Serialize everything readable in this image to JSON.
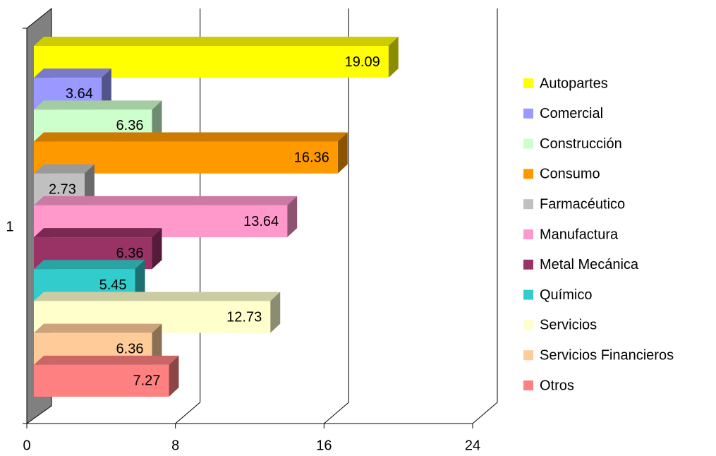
{
  "chart_data": {
    "type": "bar3d",
    "categories": [
      "1"
    ],
    "series": [
      {
        "name": "Autopartes",
        "color": "#ffff00",
        "values": [
          19.09
        ]
      },
      {
        "name": "Comercial",
        "color": "#9999ff",
        "values": [
          3.64
        ]
      },
      {
        "name": "Construcción",
        "color": "#ccffcc",
        "values": [
          6.36
        ]
      },
      {
        "name": "Consumo",
        "color": "#ff9900",
        "values": [
          16.36
        ]
      },
      {
        "name": "Farmacéutico",
        "color": "#c0c0c0",
        "values": [
          2.73
        ]
      },
      {
        "name": "Manufactura",
        "color": "#ff99cc",
        "values": [
          13.64
        ]
      },
      {
        "name": "Metal Mecánica",
        "color": "#993366",
        "values": [
          6.36
        ]
      },
      {
        "name": "Químico",
        "color": "#33cccc",
        "values": [
          5.45
        ]
      },
      {
        "name": "Servicios",
        "color": "#ffffcc",
        "values": [
          12.73
        ]
      },
      {
        "name": "Servicios Financieros",
        "color": "#ffcc99",
        "values": [
          6.36
        ]
      },
      {
        "name": "Otros",
        "color": "#ff8080",
        "values": [
          7.27
        ]
      }
    ],
    "xlim": [
      0,
      24
    ],
    "xticks": [
      0,
      8,
      16,
      24
    ],
    "grid": true,
    "legend": "right"
  }
}
